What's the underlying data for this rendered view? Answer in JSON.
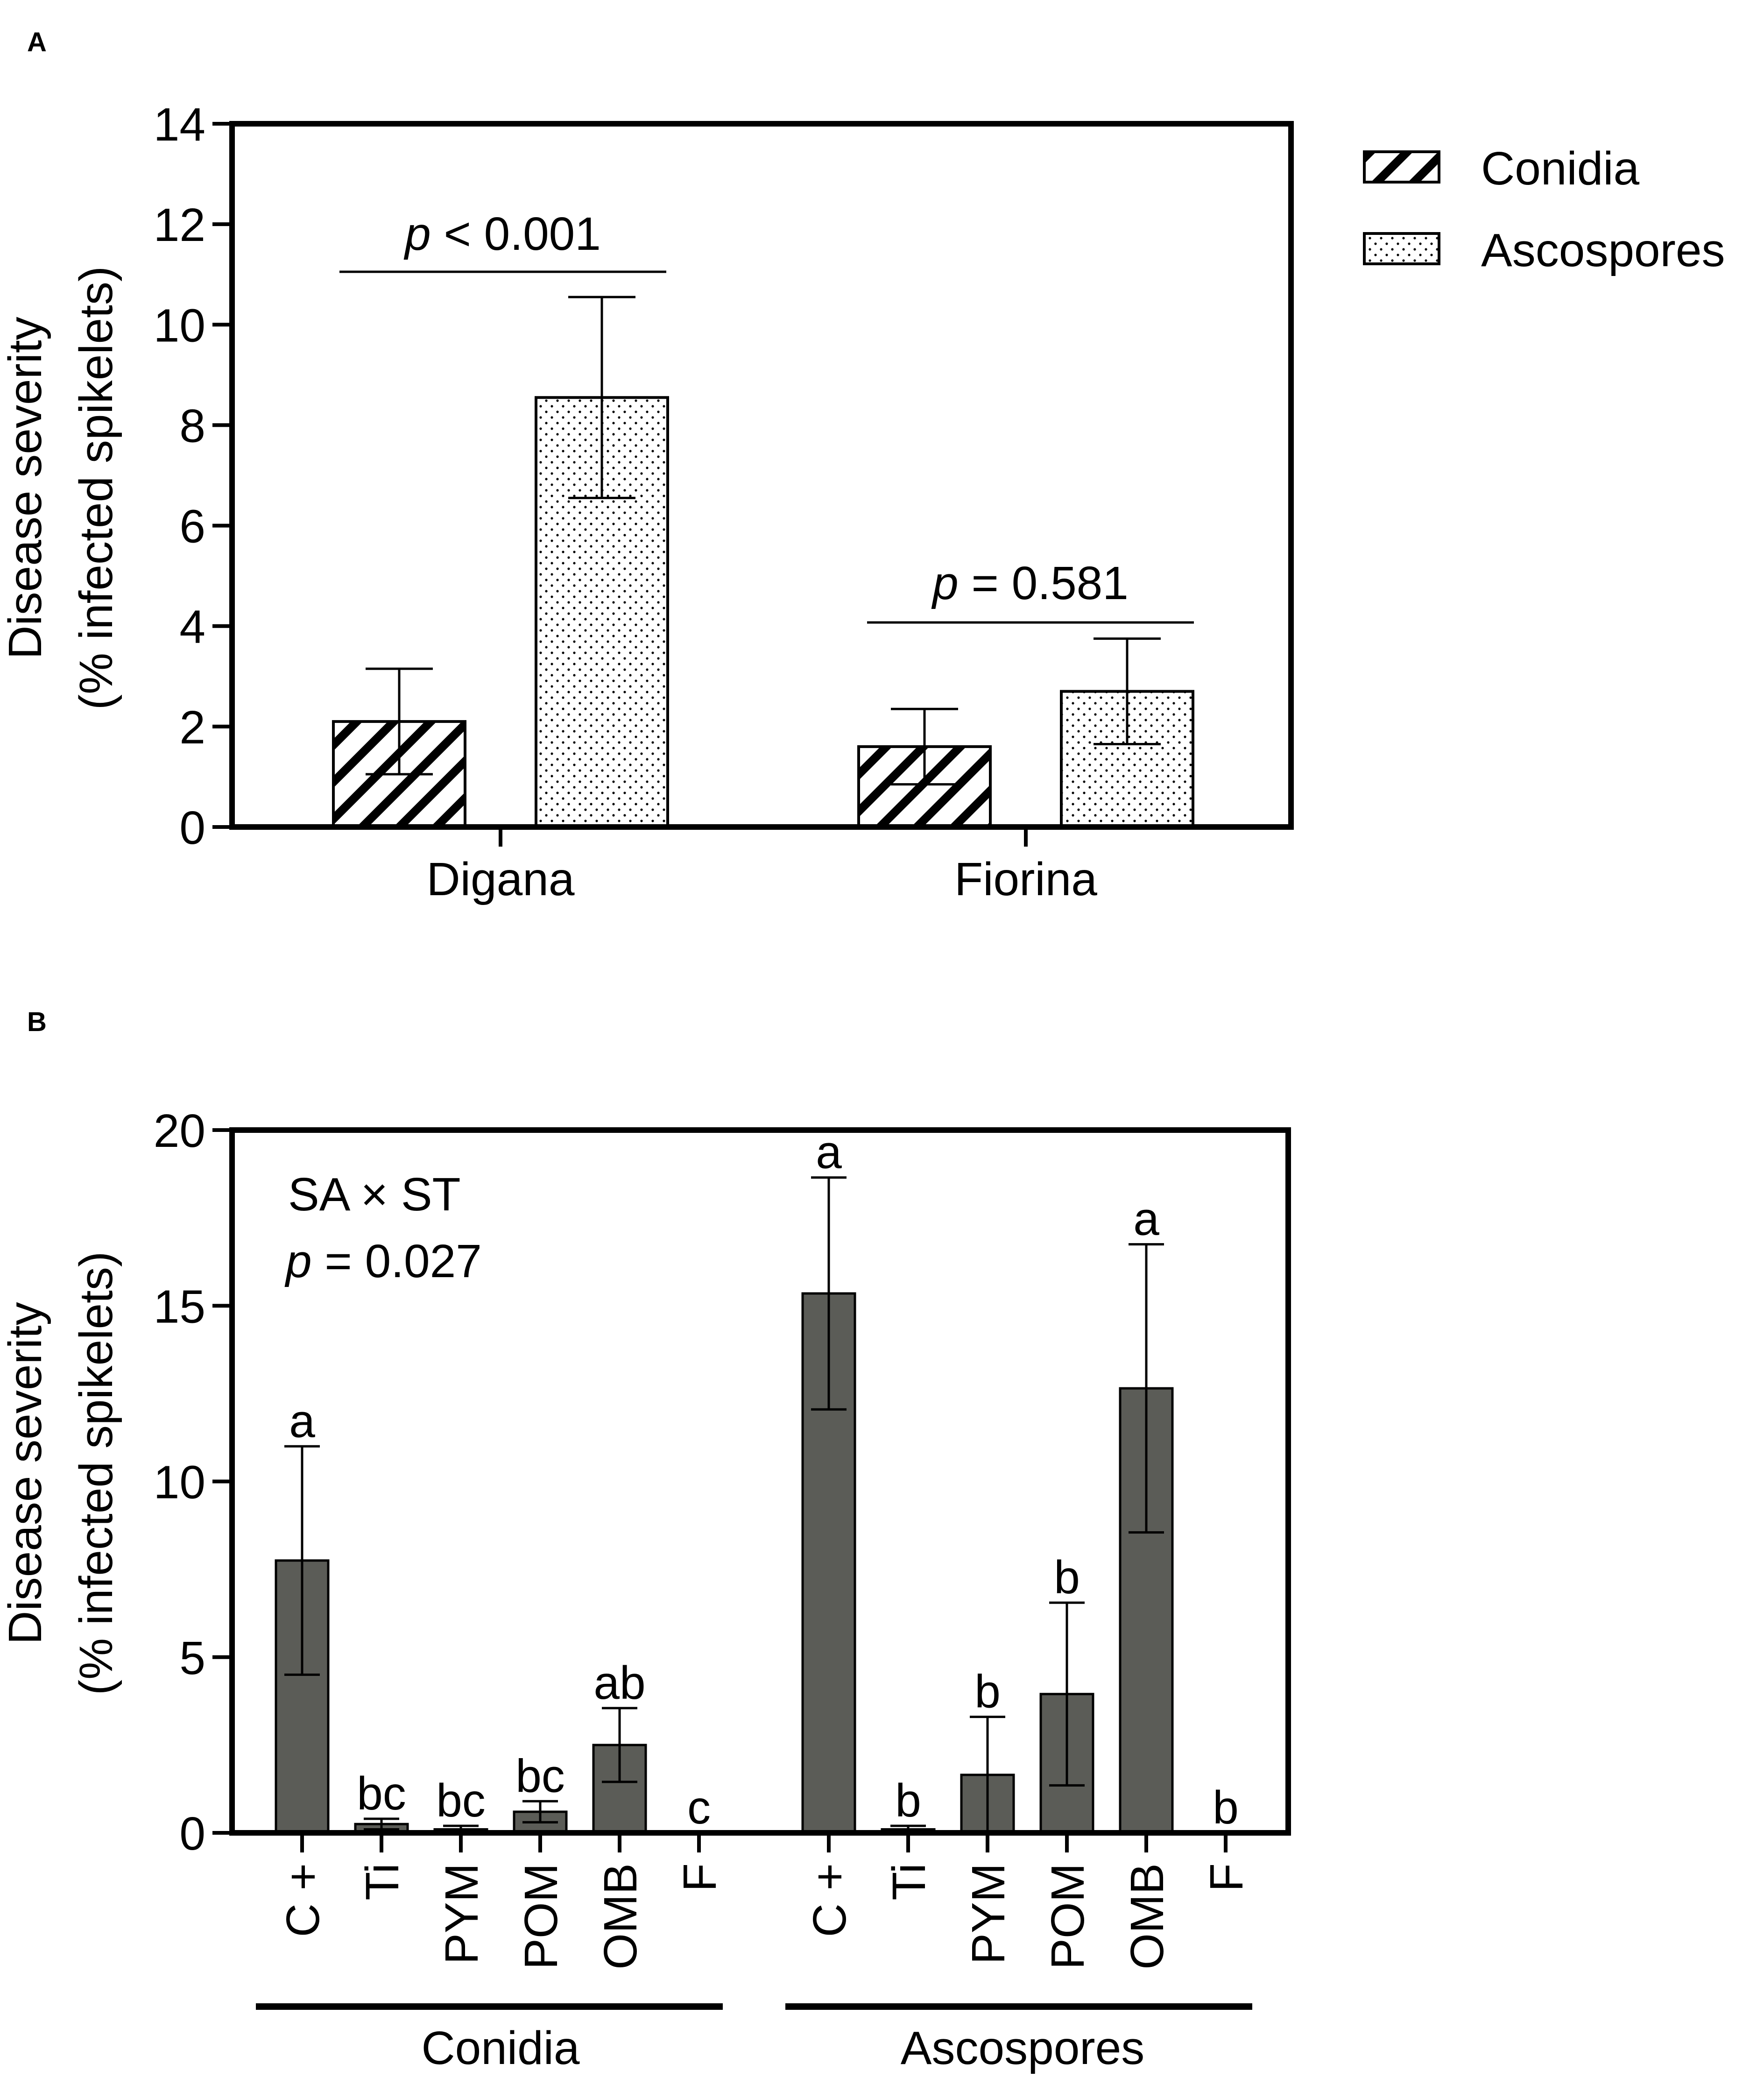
{
  "colors": {
    "bar_b_fill": "#5b5c57",
    "stroke": "#000000",
    "background": "#ffffff"
  },
  "panel_a": {
    "letter": "A",
    "ylabel_line1": "Disease severity",
    "ylabel_line2": "(% infected spikelets)",
    "legend": [
      {
        "label": "Conidia",
        "pattern": "diagonal-hatch"
      },
      {
        "label": "Ascospores",
        "pattern": "dots"
      }
    ],
    "comparisons": [
      {
        "italic": "p",
        "rest": " < 0.001"
      },
      {
        "italic": "p",
        "rest": " = 0.581"
      }
    ]
  },
  "panel_b": {
    "letter": "B",
    "ylabel_line1": "Disease severity",
    "ylabel_line2": "(% infected spikelets)",
    "annotation_line1": "SA × ST",
    "annotation_italic": "p",
    "annotation_rest": " = 0.027",
    "groups": [
      "Conidia",
      "Ascospores"
    ]
  },
  "chart_data": [
    {
      "type": "bar",
      "panel": "A",
      "title": "",
      "xlabel": "",
      "ylabel": "Disease severity (% infected spikelets)",
      "ylim": [
        0,
        14
      ],
      "yticks": [
        0,
        2,
        4,
        6,
        8,
        10,
        12,
        14
      ],
      "categories": [
        "Digana",
        "Fiorina"
      ],
      "series": [
        {
          "name": "Conidia",
          "values": [
            2.1,
            1.6
          ],
          "errors": [
            1.05,
            0.75
          ]
        },
        {
          "name": "Ascospores",
          "values": [
            8.55,
            2.7
          ],
          "errors": [
            2.0,
            1.05
          ]
        }
      ],
      "annotations": [
        "p < 0.001",
        "p = 0.581"
      ],
      "legend_position": "right"
    },
    {
      "type": "bar",
      "panel": "B",
      "title": "",
      "xlabel": "",
      "ylabel": "Disease severity (% infected spikelets)",
      "ylim": [
        0,
        20
      ],
      "yticks": [
        0,
        5,
        10,
        15,
        20
      ],
      "groups": [
        {
          "name": "Conidia",
          "categories": [
            "C +",
            "Ti",
            "PYM",
            "POM",
            "OMB",
            "F"
          ],
          "values": [
            7.75,
            0.25,
            0.1,
            0.6,
            2.5,
            0
          ],
          "errors": [
            3.25,
            0.15,
            0.1,
            0.3,
            1.05,
            0
          ],
          "letters": [
            "a",
            "bc",
            "bc",
            "bc",
            "ab",
            "c"
          ]
        },
        {
          "name": "Ascospores",
          "categories": [
            "C +",
            "Ti",
            "PYM",
            "POM",
            "OMB",
            "F"
          ],
          "values": [
            15.35,
            0.1,
            1.65,
            3.95,
            12.65,
            0
          ],
          "errors": [
            3.3,
            0.1,
            1.65,
            2.6,
            4.1,
            0
          ],
          "letters": [
            "a",
            "b",
            "b",
            "b",
            "a",
            "b"
          ]
        }
      ],
      "annotations": [
        "SA × ST",
        "p = 0.027"
      ]
    }
  ]
}
